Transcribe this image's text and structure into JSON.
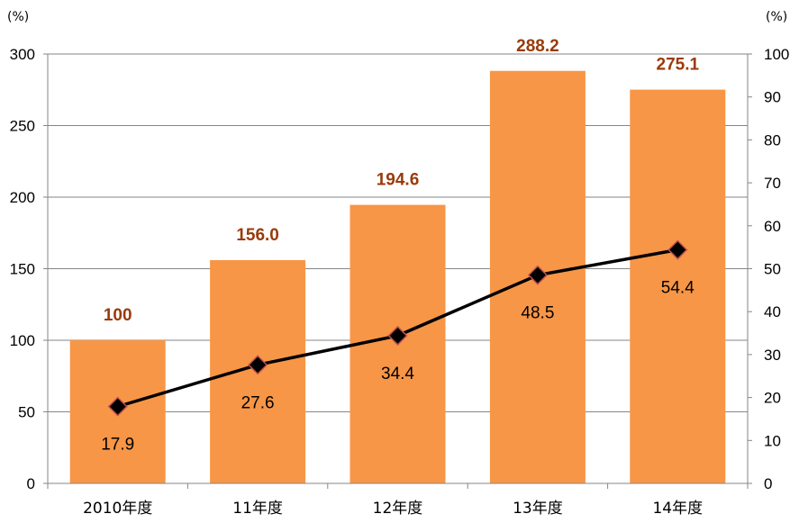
{
  "chart_data": {
    "type": "bar",
    "categories": [
      "2010年度",
      "11年度",
      "12年度",
      "13年度",
      "14年度"
    ],
    "series": [
      {
        "type": "bar",
        "axis": "left",
        "values": [
          100,
          156.0,
          194.6,
          288.2,
          275.1
        ],
        "labels": [
          "100",
          "156.0",
          "194.6",
          "288.2",
          "275.1"
        ],
        "color": "#f79646"
      },
      {
        "type": "line",
        "axis": "right",
        "values": [
          17.9,
          27.6,
          34.4,
          48.5,
          54.4
        ],
        "labels": [
          "17.9",
          "27.6",
          "34.4",
          "48.5",
          "54.4"
        ],
        "color": "#000000",
        "marker": "diamond",
        "marker_stroke": "#c0504d"
      }
    ],
    "y_left": {
      "unit": "(%)",
      "ylim": [
        0,
        300
      ],
      "ticks": [
        0,
        50,
        100,
        150,
        200,
        250,
        300
      ]
    },
    "y_right": {
      "unit": "(%)",
      "ylim": [
        0,
        100
      ],
      "ticks": [
        0,
        10,
        20,
        30,
        40,
        50,
        60,
        70,
        80,
        90,
        100
      ]
    },
    "grid": true,
    "bar_label_color": "#9a3a0a",
    "grid_color": "#868686"
  }
}
